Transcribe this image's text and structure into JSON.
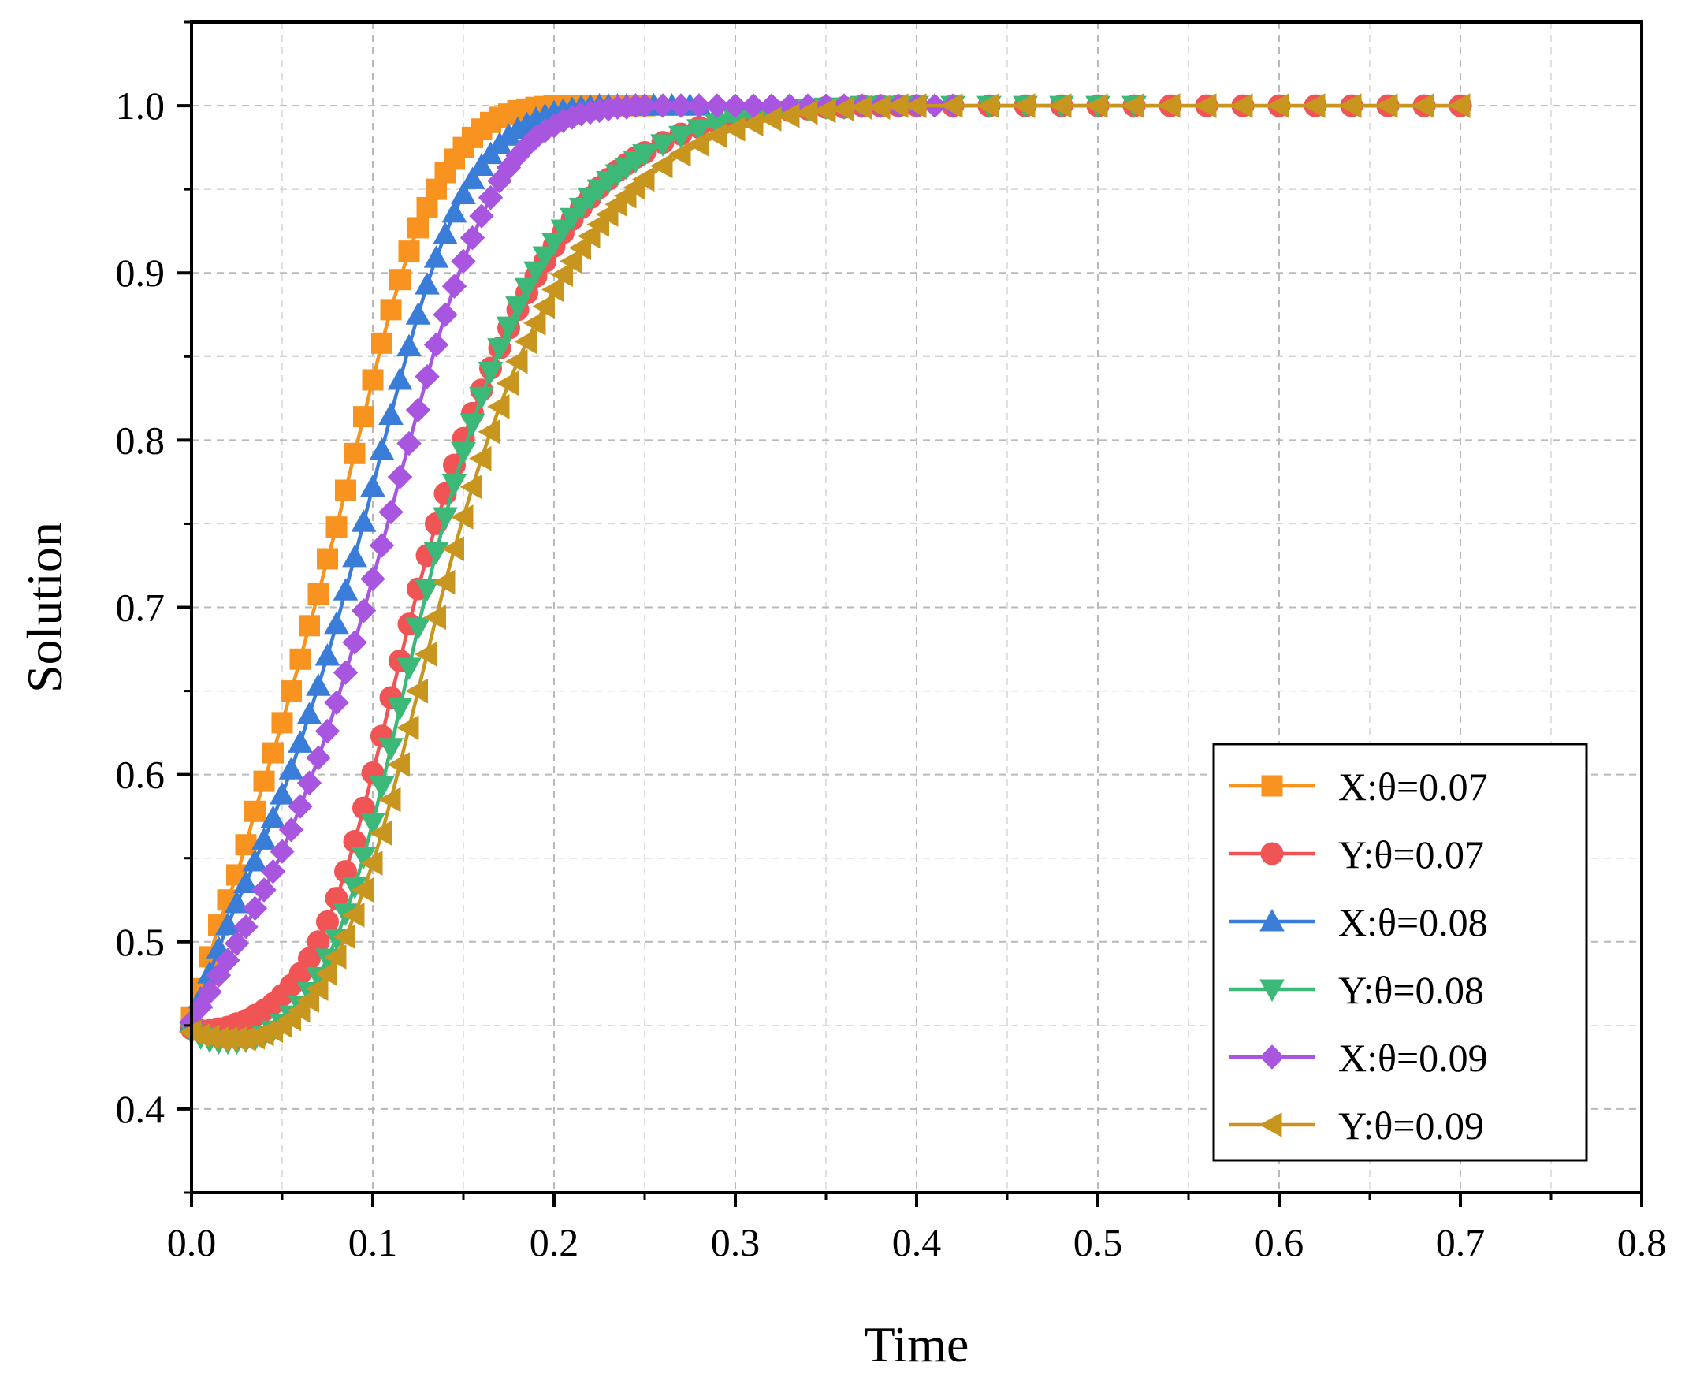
{
  "chart_data": {
    "type": "line",
    "title": "",
    "xlabel": "Time",
    "ylabel": "Solution",
    "xlim": [
      0.0,
      0.8
    ],
    "ylim": [
      0.35,
      1.05
    ],
    "xticks": [
      "0.0",
      "0.1",
      "0.2",
      "0.3",
      "0.4",
      "0.5",
      "0.6",
      "0.7",
      "0.8"
    ],
    "yticks": [
      "0.4",
      "0.5",
      "0.6",
      "0.7",
      "0.8",
      "0.9",
      "1.0"
    ],
    "grid": true,
    "legend_position": "bottom-right",
    "series": [
      {
        "name": "X:θ=0.07",
        "color": "#F7931E",
        "marker": "square",
        "x": [
          0.0,
          0.005,
          0.01,
          0.015,
          0.02,
          0.025,
          0.03,
          0.035,
          0.04,
          0.045,
          0.05,
          0.055,
          0.06,
          0.065,
          0.07,
          0.075,
          0.08,
          0.085,
          0.09,
          0.095,
          0.1,
          0.105,
          0.11,
          0.115,
          0.12,
          0.125,
          0.13,
          0.135,
          0.14,
          0.145,
          0.15,
          0.155,
          0.16,
          0.165,
          0.17,
          0.175,
          0.18,
          0.185,
          0.19,
          0.195,
          0.2,
          0.205,
          0.21,
          0.215,
          0.22,
          0.225,
          0.23,
          0.235,
          0.24,
          0.245,
          0.25
        ],
        "y": [
          0.455,
          0.472,
          0.491,
          0.51,
          0.525,
          0.54,
          0.558,
          0.578,
          0.596,
          0.613,
          0.631,
          0.65,
          0.669,
          0.689,
          0.708,
          0.729,
          0.748,
          0.77,
          0.792,
          0.814,
          0.836,
          0.858,
          0.878,
          0.896,
          0.913,
          0.927,
          0.939,
          0.95,
          0.96,
          0.968,
          0.975,
          0.981,
          0.986,
          0.99,
          0.993,
          0.995,
          0.997,
          0.998,
          0.999,
          0.9995,
          1.0,
          1.0,
          1.0,
          1.0,
          1.0,
          1.0,
          1.0,
          1.0,
          1.0,
          1.0,
          1.0
        ]
      },
      {
        "name": "Y:θ=0.07",
        "color": "#F05454",
        "marker": "circle",
        "x": [
          0.0,
          0.005,
          0.01,
          0.015,
          0.02,
          0.025,
          0.03,
          0.035,
          0.04,
          0.045,
          0.05,
          0.055,
          0.06,
          0.065,
          0.07,
          0.075,
          0.08,
          0.085,
          0.09,
          0.095,
          0.1,
          0.105,
          0.11,
          0.115,
          0.12,
          0.125,
          0.13,
          0.135,
          0.14,
          0.145,
          0.15,
          0.155,
          0.16,
          0.165,
          0.17,
          0.175,
          0.18,
          0.185,
          0.19,
          0.195,
          0.2,
          0.205,
          0.21,
          0.215,
          0.22,
          0.225,
          0.23,
          0.235,
          0.24,
          0.245,
          0.25,
          0.26,
          0.27,
          0.28,
          0.29,
          0.3,
          0.31,
          0.32,
          0.33,
          0.34,
          0.35,
          0.36,
          0.37,
          0.38,
          0.39,
          0.4,
          0.42,
          0.44,
          0.46,
          0.48,
          0.5,
          0.52,
          0.54,
          0.56,
          0.58,
          0.6,
          0.62,
          0.64,
          0.66,
          0.68,
          0.7
        ],
        "y": [
          0.448,
          0.447,
          0.447,
          0.448,
          0.449,
          0.451,
          0.453,
          0.456,
          0.459,
          0.463,
          0.468,
          0.474,
          0.481,
          0.49,
          0.5,
          0.512,
          0.526,
          0.542,
          0.56,
          0.58,
          0.601,
          0.623,
          0.646,
          0.668,
          0.69,
          0.711,
          0.731,
          0.75,
          0.768,
          0.785,
          0.801,
          0.816,
          0.83,
          0.843,
          0.855,
          0.867,
          0.878,
          0.888,
          0.898,
          0.907,
          0.916,
          0.924,
          0.932,
          0.939,
          0.945,
          0.951,
          0.956,
          0.961,
          0.965,
          0.969,
          0.972,
          0.978,
          0.983,
          0.987,
          0.99,
          0.993,
          0.995,
          0.996,
          0.997,
          0.998,
          0.999,
          0.999,
          1.0,
          1.0,
          1.0,
          1.0,
          1.0,
          1.0,
          1.0,
          1.0,
          1.0,
          1.0,
          1.0,
          1.0,
          1.0,
          1.0,
          1.0,
          1.0,
          1.0,
          1.0,
          1.0
        ]
      },
      {
        "name": "X:θ=0.08",
        "color": "#3A7DD8",
        "marker": "triangle-up",
        "x": [
          0.0,
          0.005,
          0.01,
          0.015,
          0.02,
          0.025,
          0.03,
          0.035,
          0.04,
          0.045,
          0.05,
          0.055,
          0.06,
          0.065,
          0.07,
          0.075,
          0.08,
          0.085,
          0.09,
          0.095,
          0.1,
          0.105,
          0.11,
          0.115,
          0.12,
          0.125,
          0.13,
          0.135,
          0.14,
          0.145,
          0.15,
          0.155,
          0.16,
          0.165,
          0.17,
          0.175,
          0.18,
          0.185,
          0.19,
          0.195,
          0.2,
          0.205,
          0.21,
          0.215,
          0.22,
          0.225,
          0.23,
          0.235,
          0.24,
          0.245,
          0.25,
          0.255,
          0.26,
          0.265,
          0.27,
          0.275,
          0.28
        ],
        "y": [
          0.452,
          0.466,
          0.481,
          0.496,
          0.51,
          0.523,
          0.535,
          0.548,
          0.561,
          0.574,
          0.588,
          0.603,
          0.619,
          0.636,
          0.653,
          0.671,
          0.69,
          0.71,
          0.73,
          0.751,
          0.772,
          0.794,
          0.815,
          0.836,
          0.856,
          0.875,
          0.893,
          0.909,
          0.923,
          0.936,
          0.947,
          0.956,
          0.964,
          0.971,
          0.977,
          0.982,
          0.986,
          0.989,
          0.992,
          0.994,
          0.996,
          0.997,
          0.998,
          0.999,
          0.9995,
          1.0,
          1.0,
          1.0,
          1.0,
          1.0,
          1.0,
          1.0,
          1.0,
          1.0,
          1.0,
          1.0,
          1.0
        ]
      },
      {
        "name": "Y:θ=0.08",
        "color": "#3CB878",
        "marker": "triangle-down",
        "x": [
          0.0,
          0.005,
          0.01,
          0.015,
          0.02,
          0.025,
          0.03,
          0.035,
          0.04,
          0.045,
          0.05,
          0.055,
          0.06,
          0.065,
          0.07,
          0.075,
          0.08,
          0.085,
          0.09,
          0.095,
          0.1,
          0.105,
          0.11,
          0.115,
          0.12,
          0.125,
          0.13,
          0.135,
          0.14,
          0.145,
          0.15,
          0.155,
          0.16,
          0.165,
          0.17,
          0.175,
          0.18,
          0.185,
          0.19,
          0.195,
          0.2,
          0.205,
          0.21,
          0.215,
          0.22,
          0.225,
          0.23,
          0.235,
          0.24,
          0.245,
          0.25,
          0.26,
          0.27,
          0.28,
          0.29,
          0.3,
          0.31,
          0.32,
          0.33,
          0.34,
          0.35,
          0.36,
          0.37,
          0.38,
          0.39,
          0.4,
          0.42,
          0.44,
          0.46,
          0.48,
          0.5,
          0.52
        ],
        "y": [
          0.446,
          0.443,
          0.441,
          0.44,
          0.44,
          0.44,
          0.441,
          0.442,
          0.444,
          0.447,
          0.451,
          0.456,
          0.462,
          0.47,
          0.479,
          0.49,
          0.502,
          0.517,
          0.533,
          0.551,
          0.571,
          0.593,
          0.616,
          0.64,
          0.664,
          0.688,
          0.711,
          0.733,
          0.754,
          0.774,
          0.793,
          0.81,
          0.826,
          0.841,
          0.855,
          0.868,
          0.88,
          0.891,
          0.901,
          0.91,
          0.918,
          0.926,
          0.933,
          0.939,
          0.945,
          0.95,
          0.955,
          0.959,
          0.963,
          0.967,
          0.971,
          0.977,
          0.982,
          0.986,
          0.989,
          0.992,
          0.994,
          0.996,
          0.997,
          0.998,
          0.999,
          0.999,
          1.0,
          1.0,
          1.0,
          1.0,
          1.0,
          1.0,
          1.0,
          1.0,
          1.0,
          1.0
        ]
      },
      {
        "name": "X:θ=0.09",
        "color": "#A855E0",
        "marker": "diamond",
        "x": [
          0.0,
          0.005,
          0.01,
          0.015,
          0.02,
          0.025,
          0.03,
          0.035,
          0.04,
          0.045,
          0.05,
          0.055,
          0.06,
          0.065,
          0.07,
          0.075,
          0.08,
          0.085,
          0.09,
          0.095,
          0.1,
          0.105,
          0.11,
          0.115,
          0.12,
          0.125,
          0.13,
          0.135,
          0.14,
          0.145,
          0.15,
          0.155,
          0.16,
          0.165,
          0.17,
          0.175,
          0.18,
          0.185,
          0.19,
          0.195,
          0.2,
          0.205,
          0.21,
          0.215,
          0.22,
          0.225,
          0.23,
          0.235,
          0.24,
          0.245,
          0.25,
          0.26,
          0.27,
          0.28,
          0.29,
          0.3,
          0.31,
          0.32,
          0.33,
          0.34,
          0.35,
          0.36,
          0.37,
          0.38,
          0.39,
          0.4,
          0.41,
          0.42
        ],
        "y": [
          0.452,
          0.461,
          0.47,
          0.48,
          0.489,
          0.499,
          0.509,
          0.52,
          0.531,
          0.542,
          0.554,
          0.567,
          0.581,
          0.595,
          0.61,
          0.626,
          0.643,
          0.661,
          0.679,
          0.698,
          0.717,
          0.737,
          0.757,
          0.778,
          0.798,
          0.818,
          0.838,
          0.857,
          0.875,
          0.892,
          0.907,
          0.921,
          0.934,
          0.945,
          0.955,
          0.963,
          0.97,
          0.976,
          0.981,
          0.985,
          0.988,
          0.991,
          0.993,
          0.995,
          0.996,
          0.997,
          0.998,
          0.999,
          0.999,
          1.0,
          1.0,
          1.0,
          1.0,
          1.0,
          1.0,
          1.0,
          1.0,
          1.0,
          1.0,
          1.0,
          1.0,
          1.0,
          1.0,
          1.0,
          1.0,
          1.0,
          1.0,
          1.0
        ]
      },
      {
        "name": "Y:θ=0.09",
        "color": "#C8961E",
        "marker": "triangle-left",
        "x": [
          0.0,
          0.005,
          0.01,
          0.015,
          0.02,
          0.025,
          0.03,
          0.035,
          0.04,
          0.045,
          0.05,
          0.055,
          0.06,
          0.065,
          0.07,
          0.075,
          0.08,
          0.085,
          0.09,
          0.095,
          0.1,
          0.105,
          0.11,
          0.115,
          0.12,
          0.125,
          0.13,
          0.135,
          0.14,
          0.145,
          0.15,
          0.155,
          0.16,
          0.165,
          0.17,
          0.175,
          0.18,
          0.185,
          0.19,
          0.195,
          0.2,
          0.205,
          0.21,
          0.215,
          0.22,
          0.225,
          0.23,
          0.235,
          0.24,
          0.245,
          0.25,
          0.26,
          0.27,
          0.28,
          0.29,
          0.3,
          0.31,
          0.32,
          0.33,
          0.34,
          0.35,
          0.36,
          0.37,
          0.38,
          0.39,
          0.4,
          0.42,
          0.44,
          0.46,
          0.48,
          0.5,
          0.52,
          0.54,
          0.56,
          0.58,
          0.6,
          0.62,
          0.64,
          0.66,
          0.68,
          0.7
        ],
        "y": [
          0.446,
          0.444,
          0.443,
          0.442,
          0.442,
          0.442,
          0.442,
          0.443,
          0.445,
          0.447,
          0.45,
          0.454,
          0.459,
          0.465,
          0.472,
          0.481,
          0.491,
          0.503,
          0.516,
          0.531,
          0.547,
          0.565,
          0.585,
          0.606,
          0.628,
          0.65,
          0.672,
          0.694,
          0.715,
          0.735,
          0.754,
          0.772,
          0.789,
          0.805,
          0.82,
          0.834,
          0.847,
          0.859,
          0.87,
          0.88,
          0.89,
          0.899,
          0.907,
          0.915,
          0.922,
          0.929,
          0.935,
          0.941,
          0.946,
          0.951,
          0.956,
          0.964,
          0.971,
          0.977,
          0.982,
          0.986,
          0.989,
          0.992,
          0.994,
          0.996,
          0.997,
          0.998,
          0.999,
          0.999,
          1.0,
          1.0,
          1.0,
          1.0,
          1.0,
          1.0,
          1.0,
          1.0,
          1.0,
          1.0,
          1.0,
          1.0,
          1.0,
          1.0,
          1.0,
          1.0,
          1.0
        ]
      }
    ]
  }
}
